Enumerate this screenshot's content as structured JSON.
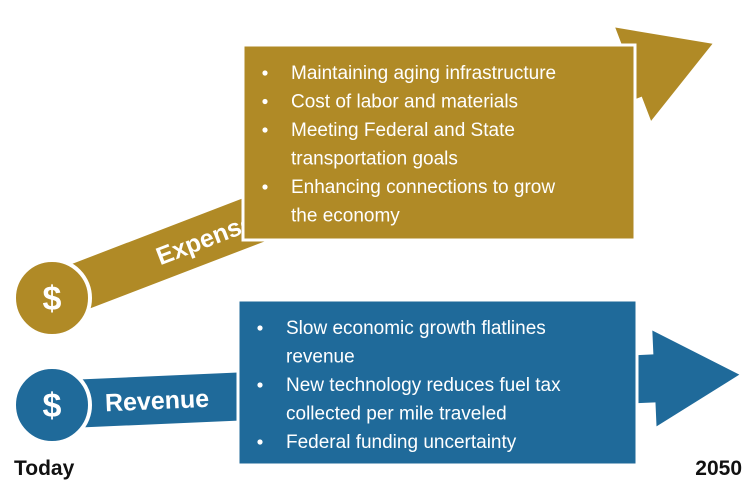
{
  "expenses": {
    "label": "Expenses",
    "symbol": "$",
    "bullets": [
      [
        "Maintaining aging infrastructure"
      ],
      [
        "Cost of labor and materials"
      ],
      [
        "Meeting Federal and State",
        "transportation goals"
      ],
      [
        "Enhancing connections to grow",
        "the economy"
      ]
    ]
  },
  "revenue": {
    "label": "Revenue",
    "symbol": "$",
    "bullets": [
      [
        "Slow economic growth flatlines",
        "revenue"
      ],
      [
        "New technology reduces fuel tax",
        "collected per mile traveled"
      ],
      [
        "Federal funding uncertainty"
      ]
    ]
  },
  "timeline": {
    "start": "Today",
    "end": "2050"
  }
}
